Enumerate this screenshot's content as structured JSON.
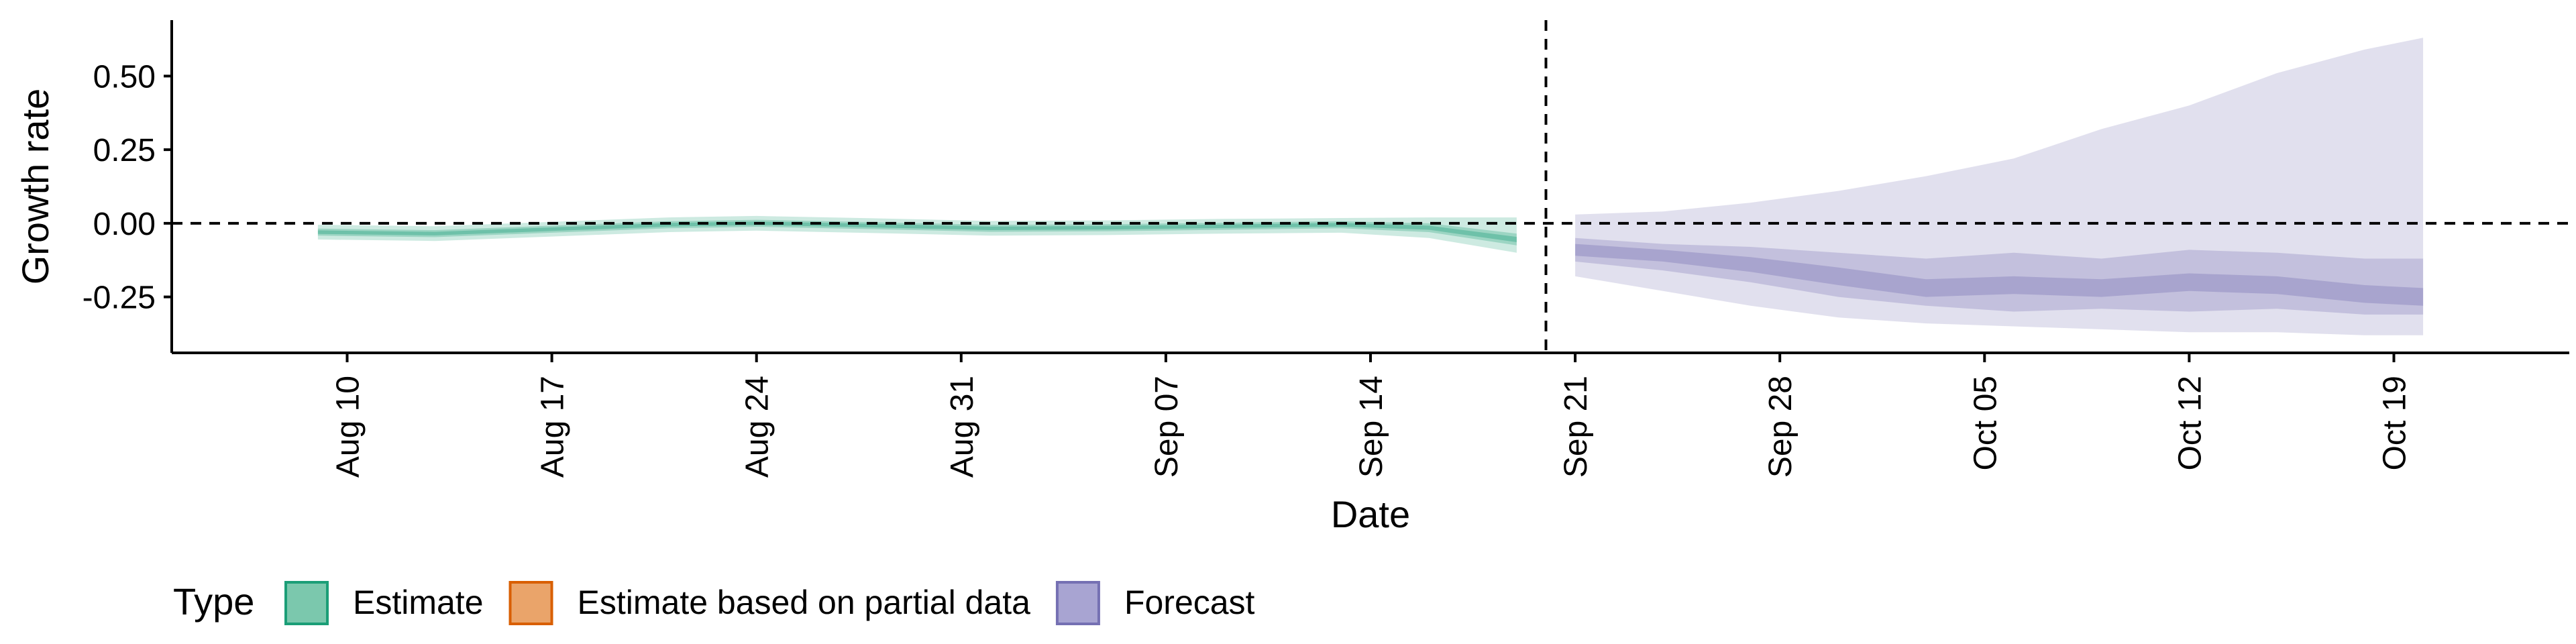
{
  "chart_data": {
    "type": "area",
    "xlabel": "Date",
    "ylabel": "Growth rate",
    "ylim": [
      -0.44,
      0.69
    ],
    "xlim": [
      "2020-08-04",
      "2020-10-25"
    ],
    "y_ticks": [
      {
        "value": 0.5,
        "label": "0.50"
      },
      {
        "value": 0.25,
        "label": "0.25"
      },
      {
        "value": 0.0,
        "label": "0.00"
      },
      {
        "value": -0.25,
        "label": "-0.25"
      }
    ],
    "x_ticks": [
      {
        "date": "2020-08-10",
        "label": "Aug 10"
      },
      {
        "date": "2020-08-17",
        "label": "Aug 17"
      },
      {
        "date": "2020-08-24",
        "label": "Aug 24"
      },
      {
        "date": "2020-08-31",
        "label": "Aug 31"
      },
      {
        "date": "2020-09-07",
        "label": "Sep 07"
      },
      {
        "date": "2020-09-14",
        "label": "Sep 14"
      },
      {
        "date": "2020-09-21",
        "label": "Sep 21"
      },
      {
        "date": "2020-09-28",
        "label": "Sep 28"
      },
      {
        "date": "2020-10-05",
        "label": "Oct 05"
      },
      {
        "date": "2020-10-12",
        "label": "Oct 12"
      },
      {
        "date": "2020-10-19",
        "label": "Oct 19"
      }
    ],
    "hline_y": 0,
    "vline_x": "2020-09-20",
    "grid": false,
    "legend": {
      "title": "Type",
      "position": "bottom",
      "entries": [
        {
          "label": "Estimate",
          "fill": "#7BC8AD",
          "stroke": "#1B9E77"
        },
        {
          "label": "Estimate based on partial data",
          "fill": "#EAA46A",
          "stroke": "#D95F02"
        },
        {
          "label": "Forecast",
          "fill": "#A8A4D2",
          "stroke": "#7570B3"
        }
      ]
    },
    "series": [
      {
        "type_key": "Estimate",
        "color": "#1B9E77",
        "points": [
          {
            "x": "2020-08-09",
            "median": -0.03,
            "lo20": -0.036,
            "hi20": -0.024,
            "lo50": -0.042,
            "hi50": -0.018,
            "lo90": -0.055,
            "hi90": -0.005
          },
          {
            "x": "2020-08-13",
            "median": -0.035,
            "lo20": -0.041,
            "hi20": -0.029,
            "lo50": -0.047,
            "hi50": -0.023,
            "lo90": -0.06,
            "hi90": -0.01
          },
          {
            "x": "2020-08-17",
            "median": -0.02,
            "lo20": -0.026,
            "hi20": -0.014,
            "lo50": -0.032,
            "hi50": -0.008,
            "lo90": -0.045,
            "hi90": 0.005
          },
          {
            "x": "2020-08-21",
            "median": -0.005,
            "lo20": -0.011,
            "hi20": 0.001,
            "lo50": -0.017,
            "hi50": 0.007,
            "lo90": -0.03,
            "hi90": 0.02
          },
          {
            "x": "2020-08-24",
            "median": 0.0,
            "lo20": -0.006,
            "hi20": 0.006,
            "lo50": -0.012,
            "hi50": 0.012,
            "lo90": -0.025,
            "hi90": 0.025
          },
          {
            "x": "2020-08-28",
            "median": -0.008,
            "lo20": -0.014,
            "hi20": -0.002,
            "lo50": -0.02,
            "hi50": 0.004,
            "lo90": -0.033,
            "hi90": 0.017
          },
          {
            "x": "2020-09-01",
            "median": -0.017,
            "lo20": -0.023,
            "hi20": -0.011,
            "lo50": -0.029,
            "hi50": -0.005,
            "lo90": -0.042,
            "hi90": 0.008
          },
          {
            "x": "2020-09-05",
            "median": -0.015,
            "lo20": -0.021,
            "hi20": -0.009,
            "lo50": -0.027,
            "hi50": -0.003,
            "lo90": -0.04,
            "hi90": 0.01
          },
          {
            "x": "2020-09-09",
            "median": -0.01,
            "lo20": -0.016,
            "hi20": -0.004,
            "lo50": -0.022,
            "hi50": 0.002,
            "lo90": -0.035,
            "hi90": 0.015
          },
          {
            "x": "2020-09-13",
            "median": -0.005,
            "lo20": -0.011,
            "hi20": 0.001,
            "lo50": -0.017,
            "hi50": 0.007,
            "lo90": -0.032,
            "hi90": 0.018
          },
          {
            "x": "2020-09-16",
            "median": -0.015,
            "lo20": -0.022,
            "hi20": -0.008,
            "lo50": -0.03,
            "hi50": 0.0,
            "lo90": -0.05,
            "hi90": 0.02
          },
          {
            "x": "2020-09-19",
            "median": -0.055,
            "lo20": -0.064,
            "hi20": -0.046,
            "lo50": -0.075,
            "hi50": -0.035,
            "lo90": -0.1,
            "hi90": 0.02
          }
        ]
      },
      {
        "type_key": "Forecast",
        "color": "#7570B3",
        "points": [
          {
            "x": "2020-09-21",
            "median": -0.09,
            "lo20": -0.11,
            "hi20": -0.07,
            "lo50": -0.13,
            "hi50": -0.05,
            "lo90": -0.18,
            "hi90": 0.03
          },
          {
            "x": "2020-09-24",
            "median": -0.11,
            "lo20": -0.13,
            "hi20": -0.09,
            "lo50": -0.16,
            "hi50": -0.07,
            "lo90": -0.23,
            "hi90": 0.04
          },
          {
            "x": "2020-09-27",
            "median": -0.14,
            "lo20": -0.165,
            "hi20": -0.115,
            "lo50": -0.2,
            "hi50": -0.08,
            "lo90": -0.28,
            "hi90": 0.07
          },
          {
            "x": "2020-09-30",
            "median": -0.18,
            "lo20": -0.21,
            "hi20": -0.15,
            "lo50": -0.25,
            "hi50": -0.1,
            "lo90": -0.32,
            "hi90": 0.11
          },
          {
            "x": "2020-10-03",
            "median": -0.22,
            "lo20": -0.25,
            "hi20": -0.19,
            "lo50": -0.28,
            "hi50": -0.12,
            "lo90": -0.34,
            "hi90": 0.16
          },
          {
            "x": "2020-10-06",
            "median": -0.21,
            "lo20": -0.24,
            "hi20": -0.18,
            "lo50": -0.3,
            "hi50": -0.1,
            "lo90": -0.35,
            "hi90": 0.22
          },
          {
            "x": "2020-10-09",
            "median": -0.22,
            "lo20": -0.25,
            "hi20": -0.19,
            "lo50": -0.29,
            "hi50": -0.12,
            "lo90": -0.36,
            "hi90": 0.32
          },
          {
            "x": "2020-10-12",
            "median": -0.2,
            "lo20": -0.23,
            "hi20": -0.17,
            "lo50": -0.3,
            "hi50": -0.09,
            "lo90": -0.37,
            "hi90": 0.4
          },
          {
            "x": "2020-10-15",
            "median": -0.21,
            "lo20": -0.24,
            "hi20": -0.18,
            "lo50": -0.29,
            "hi50": -0.1,
            "lo90": -0.37,
            "hi90": 0.51
          },
          {
            "x": "2020-10-18",
            "median": -0.24,
            "lo20": -0.27,
            "hi20": -0.21,
            "lo50": -0.31,
            "hi50": -0.12,
            "lo90": -0.38,
            "hi90": 0.59
          },
          {
            "x": "2020-10-20",
            "median": -0.25,
            "lo20": -0.28,
            "hi20": -0.22,
            "lo50": -0.31,
            "hi50": -0.12,
            "lo90": -0.38,
            "hi90": 0.63
          }
        ]
      }
    ]
  }
}
